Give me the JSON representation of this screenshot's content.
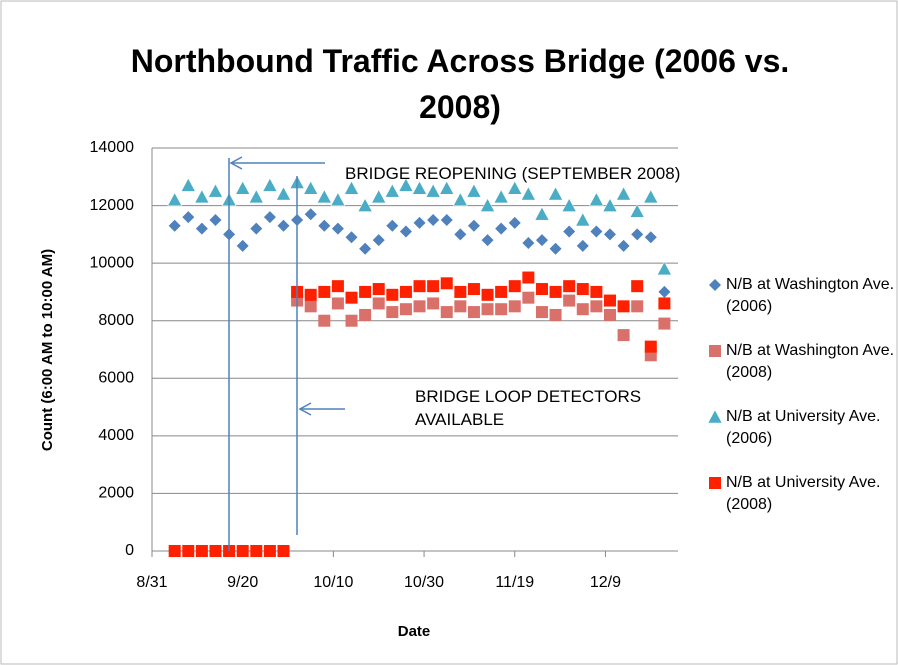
{
  "chart_data": {
    "type": "scatter",
    "title": "Northbound Traffic Across Bridge (2006 vs. 2008)",
    "x_label": "Date",
    "y_label": "Count (6:00 AM to 10:00 AM)",
    "x": [
      "9/5",
      "9/8",
      "9/11",
      "9/14",
      "9/17",
      "9/20",
      "9/23",
      "9/26",
      "9/29",
      "10/2",
      "10/5",
      "10/8",
      "10/11",
      "10/14",
      "10/17",
      "10/20",
      "10/23",
      "10/26",
      "10/29",
      "11/1",
      "11/4",
      "11/7",
      "11/10",
      "11/13",
      "11/16",
      "11/19",
      "11/22",
      "11/25",
      "11/28",
      "12/1",
      "12/4",
      "12/7",
      "12/10",
      "12/13",
      "12/16",
      "12/19",
      "12/22"
    ],
    "xlim": [
      "8/31",
      "12/25"
    ],
    "xticks": [
      "8/31",
      "9/20",
      "10/10",
      "10/30",
      "11/19",
      "12/9"
    ],
    "ylim": [
      0,
      14000
    ],
    "yticks": [
      0,
      2000,
      4000,
      6000,
      8000,
      10000,
      12000,
      14000
    ],
    "grid": true,
    "legend": "right",
    "series": [
      {
        "name": "N/B at Washington Ave. (2006)",
        "color": "#4f81bd",
        "marker": "diamond",
        "values": [
          11300,
          11600,
          11200,
          11500,
          11000,
          10600,
          11200,
          11600,
          11300,
          11500,
          11700,
          11300,
          11200,
          10900,
          10500,
          10800,
          11300,
          11100,
          11400,
          11500,
          11500,
          11000,
          11300,
          10800,
          11200,
          11400,
          10700,
          10800,
          10500,
          11100,
          10600,
          11100,
          11000,
          10600,
          11000,
          10900,
          9000
        ]
      },
      {
        "name": "N/B at Washington Ave. (2008)",
        "color": "#d9706a",
        "marker": "square",
        "values": [
          null,
          null,
          null,
          null,
          null,
          null,
          null,
          null,
          null,
          8700,
          8500,
          8000,
          8600,
          8000,
          8200,
          8600,
          8300,
          8400,
          8500,
          8600,
          8300,
          8500,
          8300,
          8400,
          8400,
          8500,
          8800,
          8300,
          8200,
          8700,
          8400,
          8500,
          8200,
          7500,
          8500,
          6800,
          7900
        ]
      },
      {
        "name": "N/B at University Ave. (2006)",
        "color": "#4bacc6",
        "marker": "triangle",
        "values": [
          12200,
          12700,
          12300,
          12500,
          12200,
          12600,
          12300,
          12700,
          12400,
          12800,
          12600,
          12300,
          12200,
          12600,
          12000,
          12300,
          12500,
          12700,
          12600,
          12500,
          12600,
          12200,
          12500,
          12000,
          12300,
          12600,
          12400,
          11700,
          12400,
          12000,
          11500,
          12200,
          12000,
          12400,
          11800,
          12300,
          9800
        ]
      },
      {
        "name": "N/B at University Ave. (2008)",
        "color": "#ff2000",
        "marker": "square",
        "values": [
          0,
          0,
          0,
          0,
          0,
          0,
          0,
          0,
          0,
          9000,
          8900,
          9000,
          9200,
          8800,
          9000,
          9100,
          8900,
          9000,
          9200,
          9200,
          9300,
          9000,
          9100,
          8900,
          9000,
          9200,
          9500,
          9100,
          9000,
          9200,
          9100,
          9000,
          8700,
          8500,
          9200,
          7100,
          8600
        ]
      }
    ],
    "annotations": [
      "BRIDGE REOPENING (SEPTEMBER 2008)",
      "BRIDGE LOOP DETECTORS AVAILABLE"
    ]
  }
}
